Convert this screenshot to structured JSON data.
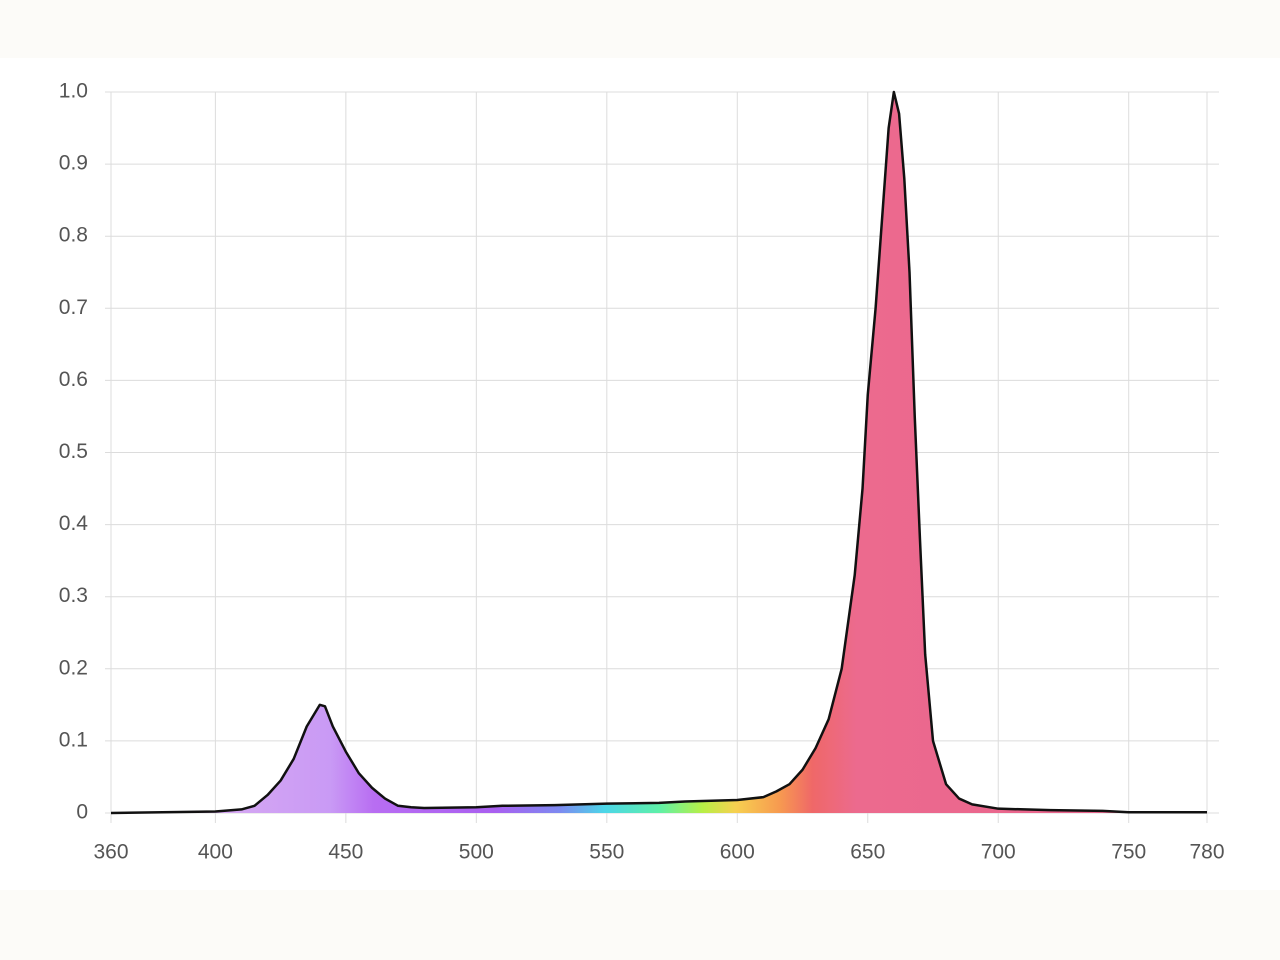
{
  "chart_data": {
    "type": "area",
    "x": [
      360,
      400,
      410,
      415,
      420,
      425,
      430,
      435,
      440,
      442,
      445,
      450,
      455,
      460,
      465,
      470,
      475,
      480,
      500,
      510,
      530,
      550,
      570,
      580,
      590,
      600,
      610,
      615,
      620,
      625,
      630,
      635,
      640,
      645,
      648,
      650,
      653,
      656,
      658,
      660,
      662,
      664,
      666,
      668,
      670,
      672,
      675,
      680,
      685,
      690,
      700,
      720,
      740,
      750,
      780
    ],
    "values": [
      0,
      0.002,
      0.005,
      0.01,
      0.025,
      0.045,
      0.075,
      0.12,
      0.15,
      0.148,
      0.12,
      0.085,
      0.055,
      0.035,
      0.02,
      0.01,
      0.008,
      0.007,
      0.008,
      0.01,
      0.011,
      0.013,
      0.014,
      0.016,
      0.017,
      0.018,
      0.022,
      0.03,
      0.04,
      0.06,
      0.09,
      0.13,
      0.2,
      0.33,
      0.45,
      0.58,
      0.7,
      0.85,
      0.95,
      1.0,
      0.97,
      0.88,
      0.75,
      0.55,
      0.38,
      0.22,
      0.1,
      0.04,
      0.02,
      0.012,
      0.006,
      0.004,
      0.003,
      0.001,
      0.001
    ],
    "line_color": "#111111",
    "xlim": [
      360,
      780
    ],
    "xticks": [
      360,
      400,
      450,
      500,
      550,
      600,
      650,
      700,
      750,
      780
    ],
    "ylim": [
      0,
      1
    ],
    "yticks": [
      0,
      0.1,
      0.2,
      0.3,
      0.4,
      0.5,
      0.6,
      0.7,
      0.8,
      0.9,
      {
        "value": 1,
        "label": "1.0"
      }
    ],
    "grid": true
  }
}
